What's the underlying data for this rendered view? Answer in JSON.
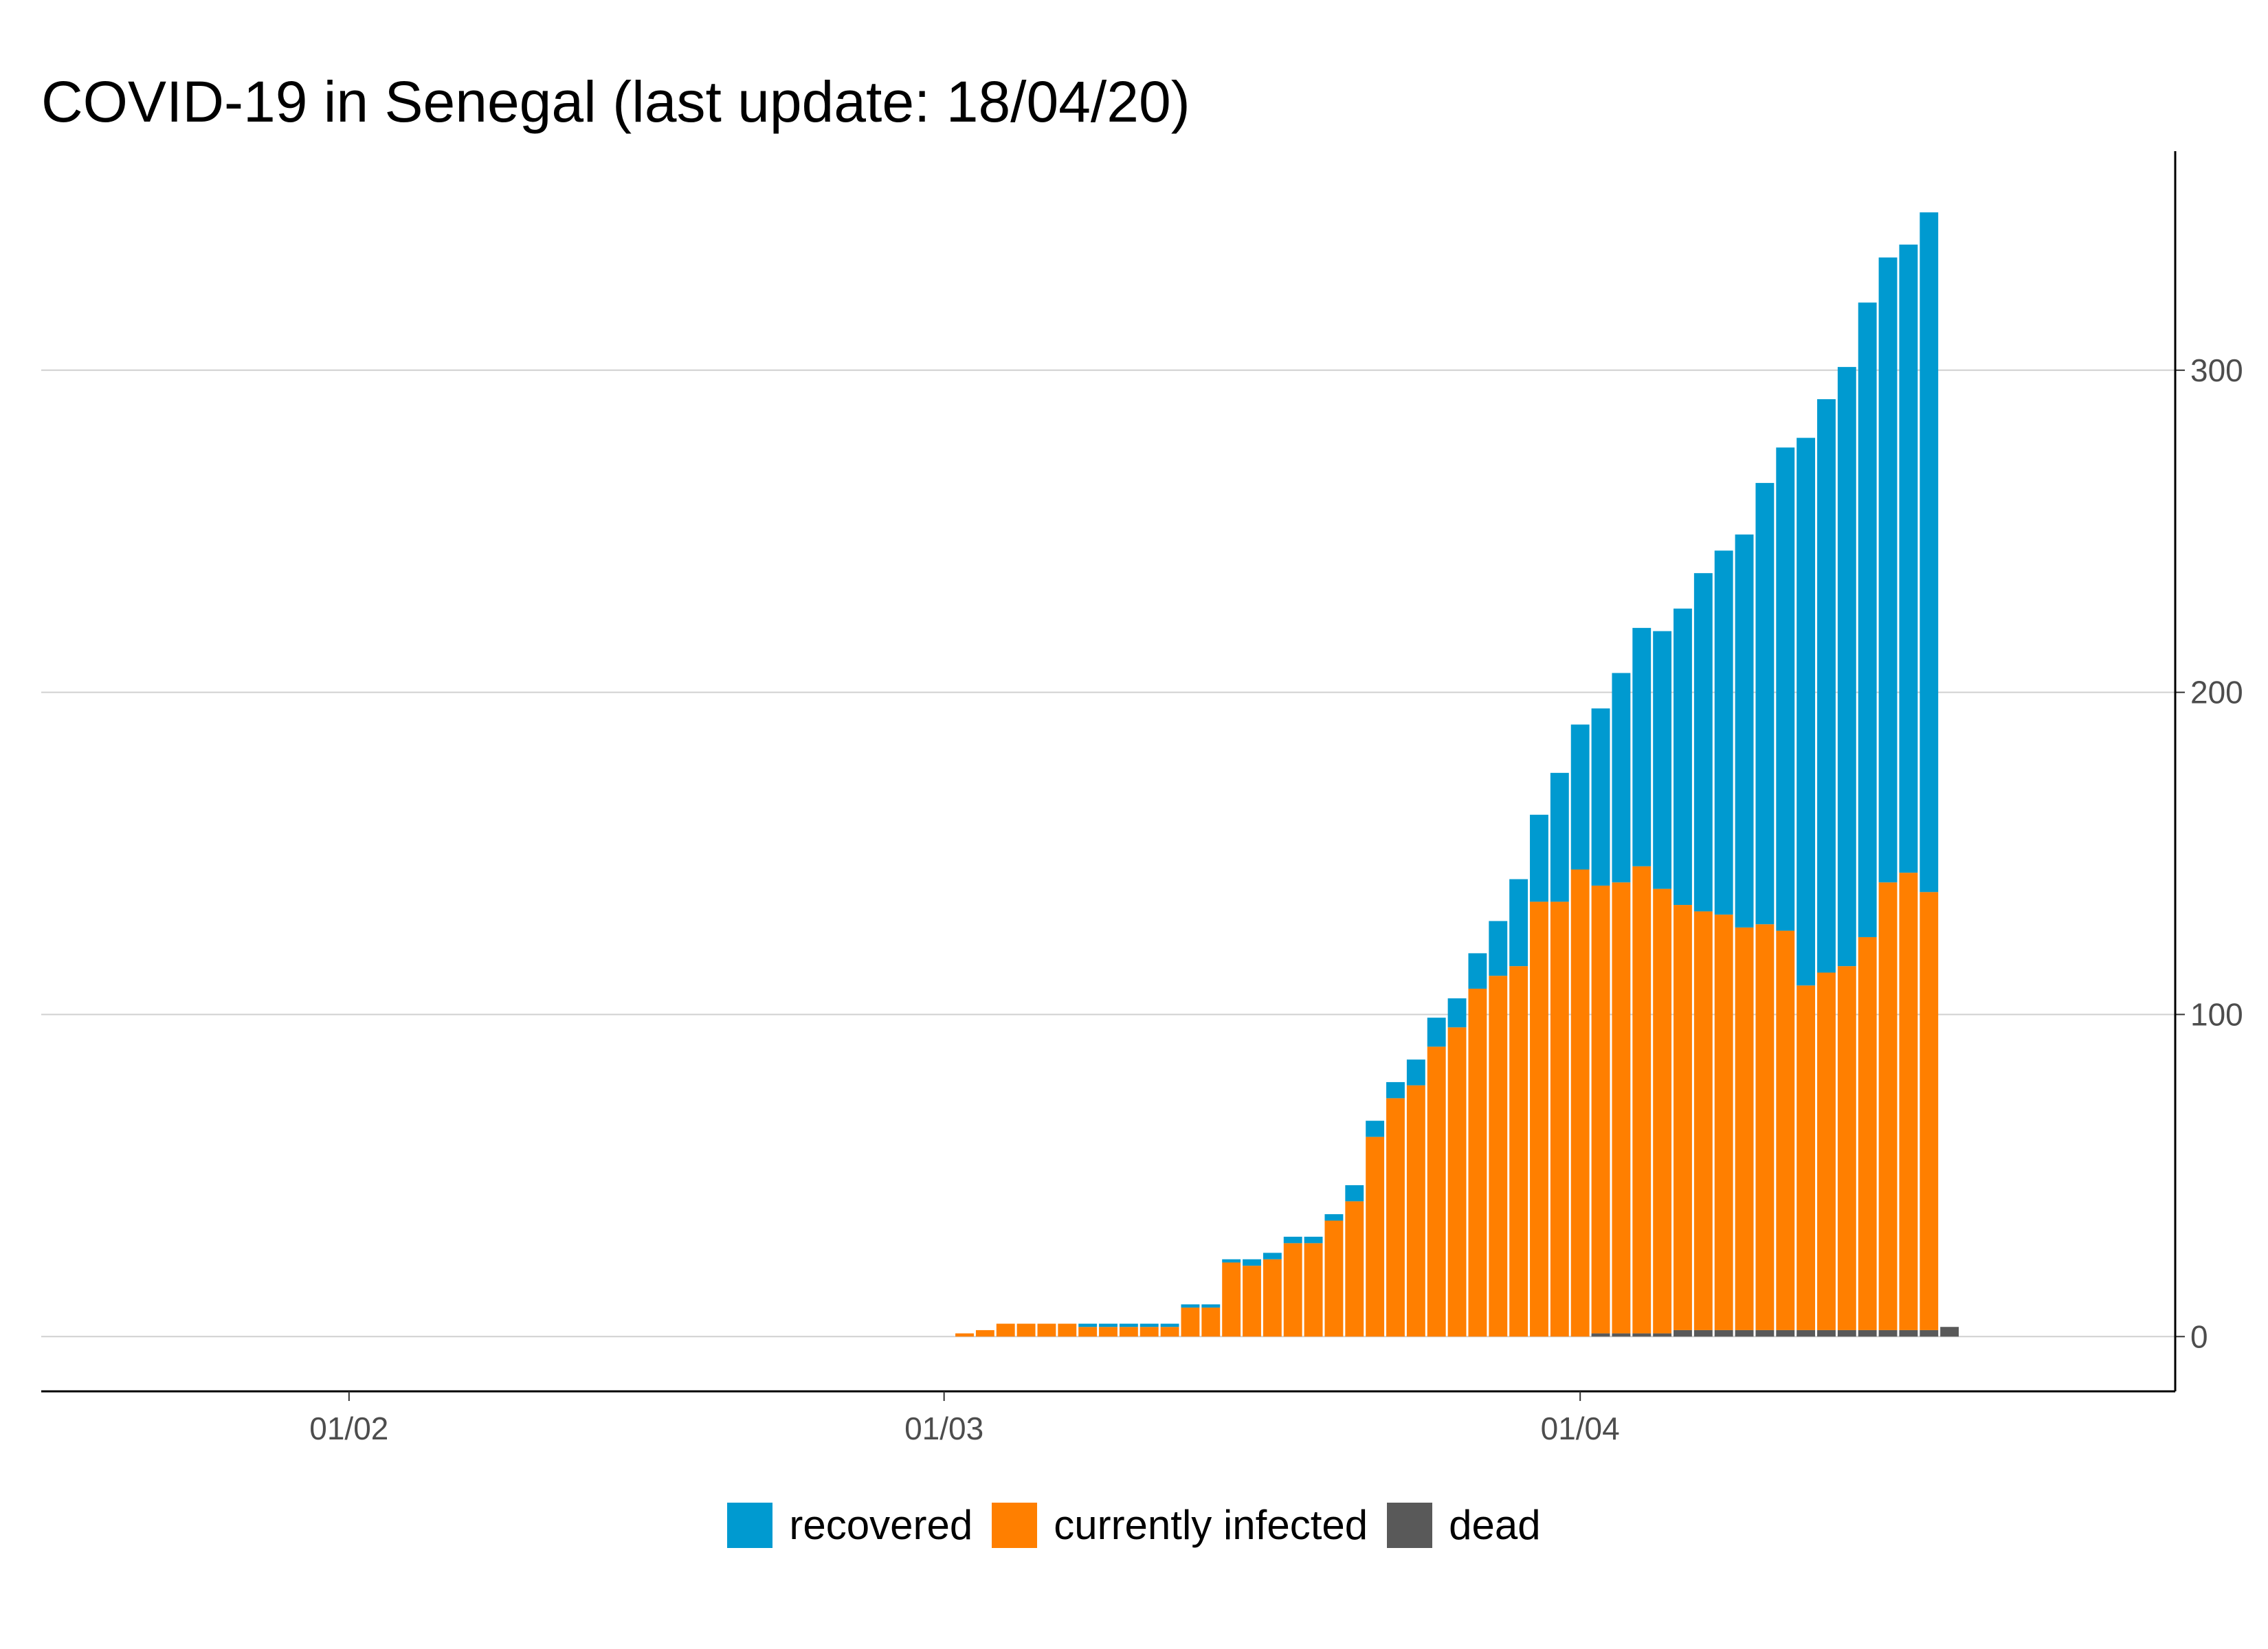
{
  "chart_data": {
    "type": "bar",
    "stacked": true,
    "title": "COVID-19 in Senegal (last update: 18/04/20)",
    "xlabel": "",
    "ylabel": "",
    "x_start": "2020-01-22",
    "x_end": "2020-04-18",
    "x_range": [
      "2020-01-17",
      "2020-04-30"
    ],
    "x_ticks": [
      {
        "date": "2020-02-01",
        "label": "01/02"
      },
      {
        "date": "2020-03-01",
        "label": "01/03"
      },
      {
        "date": "2020-04-01",
        "label": "01/04"
      }
    ],
    "ylim": [
      -17,
      368
    ],
    "y_ticks": [
      0,
      100,
      200,
      300
    ],
    "y_axis_position": "right",
    "grid": "horizontal",
    "legend_position": "bottom",
    "series": [
      {
        "name": "dead",
        "color": "#595959",
        "values": [
          0,
          0,
          0,
          0,
          0,
          0,
          0,
          0,
          0,
          0,
          0,
          0,
          0,
          0,
          0,
          0,
          0,
          0,
          0,
          0,
          0,
          0,
          0,
          0,
          0,
          0,
          0,
          0,
          0,
          0,
          0,
          0,
          0,
          0,
          0,
          0,
          0,
          0,
          0,
          0,
          0,
          0,
          0,
          0,
          0,
          0,
          0,
          0,
          0,
          0,
          0,
          0,
          0,
          0,
          0,
          0,
          0,
          0,
          0,
          0,
          0,
          0,
          0,
          0,
          0,
          0,
          0,
          0,
          0,
          0,
          0,
          1,
          1,
          1,
          1,
          2,
          2,
          2,
          2,
          2,
          2,
          2,
          2,
          2,
          2,
          2,
          2,
          2,
          3
        ]
      },
      {
        "name": "currently infected",
        "color": "#ff7f00",
        "values": [
          0,
          0,
          0,
          0,
          0,
          0,
          0,
          0,
          0,
          0,
          0,
          0,
          0,
          0,
          0,
          0,
          0,
          0,
          0,
          0,
          0,
          0,
          0,
          0,
          0,
          0,
          0,
          0,
          0,
          0,
          0,
          0,
          0,
          0,
          0,
          0,
          0,
          0,
          0,
          0,
          1,
          2,
          4,
          4,
          4,
          4,
          3,
          3,
          3,
          3,
          3,
          9,
          9,
          23,
          22,
          24,
          29,
          29,
          36,
          42,
          62,
          74,
          78,
          90,
          96,
          108,
          112,
          115,
          135,
          135,
          145,
          139,
          140,
          145,
          138,
          132,
          130,
          129,
          125,
          126,
          124,
          107,
          111,
          113,
          122,
          139,
          142,
          136
        ]
      },
      {
        "name": "recovered",
        "color": "#009ad0",
        "values": [
          0,
          0,
          0,
          0,
          0,
          0,
          0,
          0,
          0,
          0,
          0,
          0,
          0,
          0,
          0,
          0,
          0,
          0,
          0,
          0,
          0,
          0,
          0,
          0,
          0,
          0,
          0,
          0,
          0,
          0,
          0,
          0,
          0,
          0,
          0,
          0,
          0,
          0,
          0,
          0,
          0,
          0,
          0,
          0,
          0,
          0,
          1,
          1,
          1,
          1,
          1,
          1,
          1,
          1,
          2,
          2,
          2,
          2,
          2,
          5,
          5,
          5,
          8,
          9,
          9,
          11,
          17,
          27,
          27,
          40,
          45,
          55,
          65,
          74,
          80,
          92,
          105,
          113,
          122,
          137,
          150,
          170,
          178,
          186,
          197,
          194,
          195,
          211
        ]
      }
    ]
  },
  "legend": {
    "items": [
      {
        "label": "recovered",
        "color": "#009ad0"
      },
      {
        "label": "currently infected",
        "color": "#ff7f00"
      },
      {
        "label": "dead",
        "color": "#595959"
      }
    ]
  }
}
